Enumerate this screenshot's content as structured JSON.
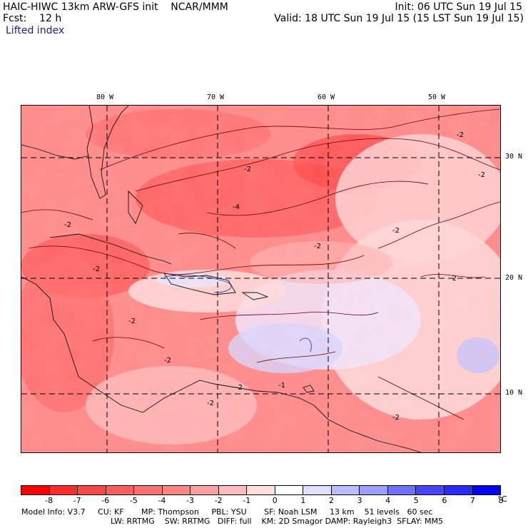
{
  "header": {
    "model": "HAIC-HIWC 13km ARW-GFS init    NCAR/MMM",
    "fcst": "Fcst:    12 h",
    "init": "Init: 06 UTC Sun 19 Jul 15",
    "valid": "Valid: 18 UTC Sun 19 Jul 15 (15 LST Sun 19 Jul 15)",
    "field": "Lifted index"
  },
  "map": {
    "lon_labels": [
      "80 W",
      "70 W",
      "60 W",
      "50 W"
    ],
    "lat_labels": [
      "30 N",
      "20 N",
      "10 N"
    ],
    "contour_labels": [
      "-2",
      "-4",
      "-2",
      "-2",
      "-2",
      "-2",
      "-2",
      "-2",
      "-2",
      "-2",
      "-2",
      "-2",
      "-1",
      "-2",
      "-2"
    ]
  },
  "colorbar": {
    "labels": [
      "-8",
      "-7",
      "-6",
      "-5",
      "-4",
      "-3",
      "-2",
      "-1",
      "0",
      "1",
      "2",
      "3",
      "4",
      "5",
      "6",
      "7",
      "8"
    ],
    "unit": "°C",
    "colors": [
      "#ff0000",
      "#ff2a2a",
      "#ff4646",
      "#ff5c5c",
      "#ff7070",
      "#ff8585",
      "#ff9e9e",
      "#ffbcbc",
      "#ffdede",
      "#ffffff",
      "#dedeff",
      "#bcbcff",
      "#9e9eff",
      "#7070ff",
      "#4646ff",
      "#2a2aff",
      "#0000ff"
    ]
  },
  "info": {
    "line1": "Model Info: V3.7     CU: KF       MP: Thompson     PBL: YSU       SF: Noah LSM     13 km    51 levels   60 sec",
    "line2": "LW: RRTMG    SW: RRTMG   DIFF: full    KM: 2D Smagor DAMP: Rayleigh3  SFLAY: MM5"
  }
}
